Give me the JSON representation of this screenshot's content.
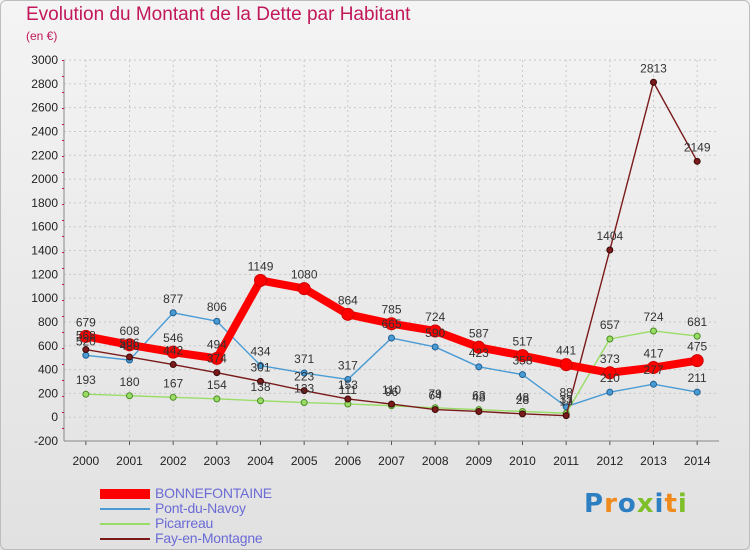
{
  "title": "Evolution du Montant de la Dette par Habitant",
  "subtitle": "(en €)",
  "brand": "Proxiti",
  "brand_colors": [
    "#2d7fc1",
    "#f08a1c",
    "#2d7fc1",
    "#7fbf2a",
    "#2d7fc1",
    "#f08a1c",
    "#7fbf2a"
  ],
  "chart_data": {
    "type": "line",
    "x": [
      "2000",
      "2001",
      "2002",
      "2003",
      "2004",
      "2005",
      "2006",
      "2007",
      "2008",
      "2009",
      "2010",
      "2011",
      "2012",
      "2013",
      "2014"
    ],
    "yticks": [
      -200,
      0,
      200,
      400,
      600,
      800,
      1000,
      1200,
      1400,
      1600,
      1800,
      2000,
      2200,
      2400,
      2600,
      2800,
      3000
    ],
    "ylim": [
      -200,
      3000
    ],
    "grid": true,
    "legend_position": "bottom-left",
    "series": [
      {
        "name": "BONNEFONTAINE",
        "color": "#ff0000",
        "values": [
          679,
          608,
          546,
          494,
          1149,
          1080,
          864,
          785,
          724,
          587,
          517,
          441,
          373,
          417,
          475
        ]
      },
      {
        "name": "Pont-du-Navoy",
        "color": "#4a9bd4",
        "values": [
          520,
          480,
          877,
          806,
          434,
          371,
          317,
          665,
          590,
          423,
          358,
          88,
          210,
          277,
          211
        ]
      },
      {
        "name": "Picarreau",
        "color": "#99dd66",
        "values": [
          193,
          180,
          167,
          154,
          138,
          123,
          111,
          96,
          79,
          63,
          48,
          33,
          657,
          724,
          681
        ]
      },
      {
        "name": "Fay-en-Montagne",
        "color": "#7a1a1a",
        "values": [
          568,
          506,
          442,
          374,
          301,
          223,
          153,
          110,
          64,
          48,
          28,
          13,
          1404,
          2813,
          2149
        ]
      }
    ],
    "data_labels": [
      [
        679,
        608,
        546,
        494,
        1149,
        1080,
        864,
        785,
        724,
        587,
        517,
        441,
        373,
        417,
        475
      ],
      [
        520,
        480,
        877,
        806,
        434,
        371,
        317,
        665,
        590,
        423,
        358,
        88,
        210,
        277,
        211
      ],
      [
        193,
        180,
        167,
        154,
        138,
        123,
        111,
        96,
        79,
        63,
        48,
        33,
        657,
        724,
        681
      ],
      [
        568,
        506,
        442,
        374,
        301,
        223,
        153,
        110,
        64,
        48,
        28,
        13,
        1404,
        2813,
        2149
      ]
    ]
  }
}
